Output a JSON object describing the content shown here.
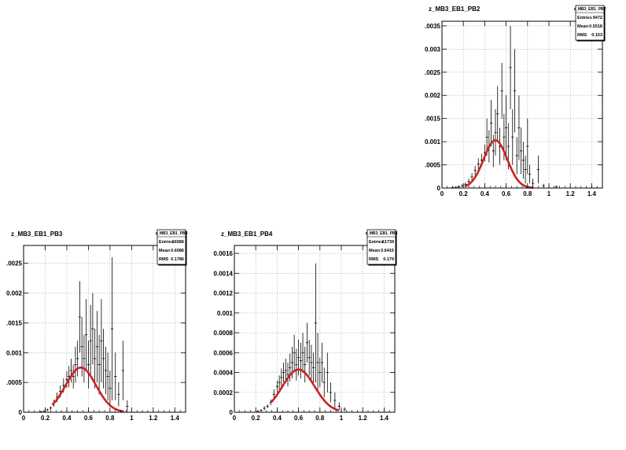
{
  "chart_data": [
    {
      "type": "scatter",
      "title": "z_MB3_EB1_PB2",
      "stats": {
        "name": "z_MB3_EB1_PB2",
        "rows": [
          [
            "Entries",
            "9472"
          ],
          [
            "Mean",
            "0.5518"
          ],
          [
            "RMS",
            "0.153"
          ]
        ]
      },
      "xlim": [
        0,
        1.5
      ],
      "ylim": [
        0,
        0.0036
      ],
      "xticks": [
        0,
        0.2,
        0.4,
        0.6,
        0.8,
        1,
        1.2,
        1.4
      ],
      "xtick_labels": [
        "0",
        "0.2",
        "0.4",
        "0.6",
        "0.8",
        "1",
        "1.2",
        "1.4"
      ],
      "yticks": [
        0,
        0.0005,
        0.001,
        0.0015,
        0.002,
        0.0025,
        0.003,
        0.0035
      ],
      "ytick_labels": [
        "0",
        ".0005",
        "0.001",
        ".0015",
        "0.002",
        ".0025",
        "0.003",
        ".0035"
      ],
      "grid": true,
      "fit": {
        "color": "#cc2222",
        "x_from": 0.22,
        "x_to": 0.85,
        "peak_x": 0.5,
        "peak_y": 0.00103,
        "sigma": 0.11
      },
      "points": [
        [
          0.1,
          1e-05,
          1e-05
        ],
        [
          0.13,
          2e-05,
          1e-05
        ],
        [
          0.16,
          3e-05,
          2e-05
        ],
        [
          0.19,
          5e-05,
          3e-05
        ],
        [
          0.22,
          8e-05,
          4e-05
        ],
        [
          0.25,
          0.00014,
          6e-05
        ],
        [
          0.28,
          0.00024,
          8e-05
        ],
        [
          0.31,
          0.00038,
          0.0001
        ],
        [
          0.34,
          0.00052,
          0.00012
        ],
        [
          0.37,
          0.0006,
          0.00014
        ],
        [
          0.4,
          0.00076,
          0.00018
        ],
        [
          0.42,
          0.0011,
          0.0004
        ],
        [
          0.44,
          0.0009,
          0.00035
        ],
        [
          0.46,
          0.0014,
          0.0005
        ],
        [
          0.48,
          0.0008,
          0.00035
        ],
        [
          0.5,
          0.0012,
          0.0005
        ],
        [
          0.52,
          0.0016,
          0.0006
        ],
        [
          0.54,
          0.0009,
          0.0004
        ],
        [
          0.56,
          0.0021,
          0.0006
        ],
        [
          0.58,
          0.0011,
          0.0005
        ],
        [
          0.6,
          0.0013,
          0.0007
        ],
        [
          0.62,
          0.0009,
          0.0005
        ],
        [
          0.64,
          0.0026,
          0.0009
        ],
        [
          0.66,
          0.0011,
          0.0006
        ],
        [
          0.68,
          0.0021,
          0.0009
        ],
        [
          0.7,
          0.0007,
          0.0004
        ],
        [
          0.72,
          0.0013,
          0.0007
        ],
        [
          0.74,
          0.0008,
          0.0005
        ],
        [
          0.76,
          0.0006,
          0.0004
        ],
        [
          0.78,
          0.0004,
          0.0003
        ],
        [
          0.8,
          0.0009,
          0.0006
        ],
        [
          0.82,
          0.0003,
          0.0002
        ],
        [
          0.85,
          0.0001,
          0.0001
        ],
        [
          0.9,
          0.0004,
          0.0003
        ],
        [
          0.95,
          5e-05,
          4e-05
        ],
        [
          1.07,
          3e-05,
          2e-05
        ]
      ]
    },
    {
      "type": "scatter",
      "title": "z_MB3_EB1_PB3",
      "stats": {
        "name": "z_MB3_EB1_PB3",
        "rows": [
          [
            "Entries",
            "16586"
          ],
          [
            "Mean",
            "0.6086"
          ],
          [
            "RMS",
            "0.1786"
          ]
        ]
      },
      "xlim": [
        0,
        1.5
      ],
      "ylim": [
        0,
        0.0028
      ],
      "xticks": [
        0,
        0.2,
        0.4,
        0.6,
        0.8,
        1,
        1.2,
        1.4
      ],
      "xtick_labels": [
        "0",
        "0.2",
        "0.4",
        "0.6",
        "0.8",
        "1",
        "1.2",
        "1.4"
      ],
      "yticks": [
        0,
        0.0005,
        0.001,
        0.0015,
        0.002,
        0.0025
      ],
      "ytick_labels": [
        "0",
        ".0005",
        "0.001",
        ".0015",
        "0.002",
        ".0025"
      ],
      "grid": true,
      "fit": {
        "color": "#cc2222",
        "x_from": 0.27,
        "x_to": 0.92,
        "peak_x": 0.53,
        "peak_y": 0.00075,
        "sigma": 0.14
      },
      "points": [
        [
          0.16,
          1e-05,
          1e-05
        ],
        [
          0.19,
          2e-05,
          1e-05
        ],
        [
          0.22,
          4e-05,
          2e-05
        ],
        [
          0.25,
          7e-05,
          3e-05
        ],
        [
          0.28,
          0.00015,
          6e-05
        ],
        [
          0.31,
          0.00025,
          8e-05
        ],
        [
          0.34,
          0.00035,
          0.0001
        ],
        [
          0.37,
          0.00045,
          0.00012
        ],
        [
          0.4,
          0.00055,
          0.00014
        ],
        [
          0.42,
          0.0006,
          0.00018
        ],
        [
          0.44,
          0.0007,
          0.0002
        ],
        [
          0.46,
          0.0006,
          0.0002
        ],
        [
          0.48,
          0.0008,
          0.0003
        ],
        [
          0.5,
          0.0009,
          0.0003
        ],
        [
          0.52,
          0.0016,
          0.0006
        ],
        [
          0.54,
          0.0011,
          0.0005
        ],
        [
          0.56,
          0.0009,
          0.0004
        ],
        [
          0.58,
          0.0013,
          0.0006
        ],
        [
          0.6,
          0.0008,
          0.0004
        ],
        [
          0.62,
          0.0012,
          0.0006
        ],
        [
          0.64,
          0.0014,
          0.0006
        ],
        [
          0.66,
          0.0009,
          0.0005
        ],
        [
          0.68,
          0.0011,
          0.0006
        ],
        [
          0.7,
          0.0008,
          0.0005
        ],
        [
          0.72,
          0.0012,
          0.0007
        ],
        [
          0.74,
          0.0009,
          0.0005
        ],
        [
          0.76,
          0.0007,
          0.0004
        ],
        [
          0.78,
          0.0006,
          0.0004
        ],
        [
          0.8,
          0.0004,
          0.0003
        ],
        [
          0.82,
          0.0014,
          0.0012
        ],
        [
          0.85,
          0.0006,
          0.0004
        ],
        [
          0.88,
          0.0003,
          0.0002
        ],
        [
          0.92,
          0.0007,
          0.0005
        ],
        [
          0.96,
          0.0001,
          0.0001
        ]
      ]
    },
    {
      "type": "scatter",
      "title": "z_MB3_EB1_PB4",
      "stats": {
        "name": "z_MB3_EB1_PB4",
        "rows": [
          [
            "Entries",
            "61739"
          ],
          [
            "Mean",
            "0.6415"
          ],
          [
            "RMS",
            "0.179"
          ]
        ]
      },
      "xlim": [
        0,
        1.5
      ],
      "ylim": [
        0,
        0.00168
      ],
      "xticks": [
        0,
        0.2,
        0.4,
        0.6,
        0.8,
        1,
        1.2,
        1.4
      ],
      "xtick_labels": [
        "0",
        "0.2",
        "0.4",
        "0.6",
        "0.8",
        "1",
        "1.2",
        "1.4"
      ],
      "yticks": [
        0,
        0.0002,
        0.0004,
        0.0006,
        0.0008,
        0.001,
        0.0012,
        0.0014,
        0.0016
      ],
      "ytick_labels": [
        "0",
        "0.0002",
        "0.0004",
        "0.0006",
        "0.0008",
        "0.001",
        "0.0012",
        "0.0014",
        "0.0016"
      ],
      "grid": true,
      "fit": {
        "color": "#cc2222",
        "x_from": 0.35,
        "x_to": 0.97,
        "peak_x": 0.6,
        "peak_y": 0.00043,
        "sigma": 0.15
      },
      "points": [
        [
          0.22,
          1e-05,
          1e-05
        ],
        [
          0.25,
          2e-05,
          1e-05
        ],
        [
          0.28,
          4e-05,
          2e-05
        ],
        [
          0.31,
          6e-05,
          2e-05
        ],
        [
          0.34,
          0.0001,
          3e-05
        ],
        [
          0.37,
          0.00018,
          5e-05
        ],
        [
          0.4,
          0.00026,
          6e-05
        ],
        [
          0.42,
          0.0003,
          7e-05
        ],
        [
          0.44,
          0.00035,
          9e-05
        ],
        [
          0.46,
          0.0004,
          0.0001
        ],
        [
          0.48,
          0.00042,
          0.00012
        ],
        [
          0.5,
          0.00038,
          0.00012
        ],
        [
          0.52,
          0.00045,
          0.00014
        ],
        [
          0.54,
          0.0005,
          0.00016
        ],
        [
          0.56,
          0.0006,
          0.00018
        ],
        [
          0.58,
          0.00048,
          0.00016
        ],
        [
          0.6,
          0.00055,
          0.00018
        ],
        [
          0.62,
          0.00052,
          0.00018
        ],
        [
          0.64,
          0.0006,
          0.0002
        ],
        [
          0.66,
          0.00048,
          0.00018
        ],
        [
          0.68,
          0.0007,
          0.0002
        ],
        [
          0.7,
          0.00055,
          0.00018
        ],
        [
          0.72,
          0.0005,
          0.00018
        ],
        [
          0.74,
          0.00045,
          0.00015
        ],
        [
          0.76,
          0.0009,
          0.0006
        ],
        [
          0.78,
          0.0005,
          0.0003
        ],
        [
          0.8,
          0.0004,
          0.00015
        ],
        [
          0.82,
          0.0005,
          0.0002
        ],
        [
          0.84,
          0.0003,
          0.00015
        ],
        [
          0.87,
          0.0004,
          0.0002
        ],
        [
          0.9,
          0.0002,
          0.0001
        ],
        [
          0.94,
          0.00012,
          8e-05
        ],
        [
          0.98,
          6e-05,
          4e-05
        ],
        [
          1.03,
          3e-05,
          2e-05
        ]
      ]
    }
  ]
}
